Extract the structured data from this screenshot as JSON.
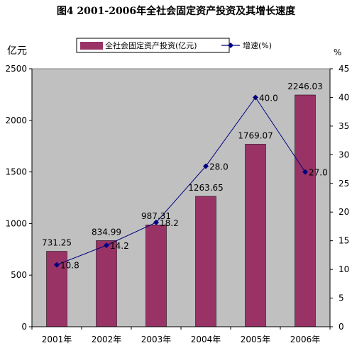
{
  "chart_data": {
    "type": "bar",
    "title": "图4    2001-2006年全社会固定资产投资及其增长速度",
    "categories": [
      "2001年",
      "2002年",
      "2003年",
      "2004年",
      "2005年",
      "2006年"
    ],
    "left_unit": "亿元",
    "right_unit": "%",
    "ylim": [
      0,
      2500
    ],
    "y_ticks": [
      0,
      500,
      1000,
      1500,
      2000,
      2500
    ],
    "y2lim": [
      0,
      45
    ],
    "y2_ticks": [
      0,
      5,
      10,
      15,
      20,
      25,
      30,
      35,
      40,
      45
    ],
    "grid": false,
    "legend_position": "top",
    "series": [
      {
        "name": "全社会固定资产投资(亿元)",
        "type": "bar",
        "axis": "left",
        "color": "#993366",
        "values": [
          731.25,
          834.99,
          987.31,
          1263.65,
          1769.07,
          2246.03
        ],
        "labels": [
          "731.25",
          "834.99",
          "987.31",
          "1263.65",
          "1769.07",
          "2246.03"
        ]
      },
      {
        "name": "增速(%)",
        "type": "line",
        "axis": "right",
        "color": "#000080",
        "values": [
          10.8,
          14.2,
          18.2,
          28.0,
          40.0,
          27.0
        ],
        "labels": [
          "10.8",
          "14.2",
          "18.2",
          "28.0",
          "40.0",
          "27.0"
        ]
      }
    ],
    "plot_background": "#c0c0c0"
  }
}
